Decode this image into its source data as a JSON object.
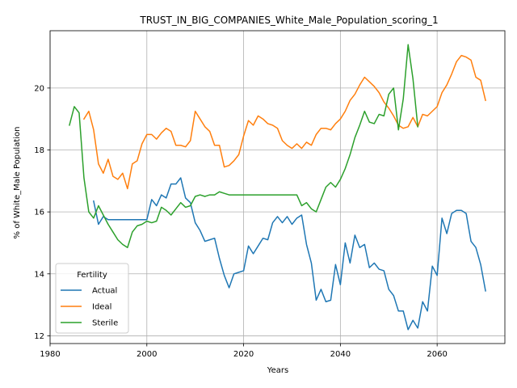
{
  "chart_data": {
    "type": "line",
    "title": "TRUST_IN_BIG_COMPANIES_White_Male_Population_scoring_1",
    "xlabel": "Years",
    "ylabel": "% of White_Male Population",
    "xlim": [
      1980,
      2074
    ],
    "ylim": [
      11.75,
      21.85
    ],
    "xticks": [
      1980,
      2000,
      2020,
      2040,
      2060
    ],
    "yticks": [
      12,
      14,
      16,
      18,
      20
    ],
    "grid": true,
    "legend": {
      "title": "Fertility",
      "placement": "lower-left"
    },
    "series": [
      {
        "name": "Actual",
        "color": "#1f77b4",
        "x": [
          1989,
          1990,
          1991,
          1992,
          1993,
          1994,
          1995,
          1996,
          1997,
          1998,
          1999,
          2000,
          2001,
          2002,
          2003,
          2004,
          2005,
          2006,
          2007,
          2008,
          2009,
          2010,
          2011,
          2012,
          2013,
          2014,
          2015,
          2016,
          2017,
          2018,
          2019,
          2020,
          2021,
          2022,
          2023,
          2024,
          2025,
          2026,
          2027,
          2028,
          2029,
          2030,
          2031,
          2032,
          2033,
          2034,
          2035,
          2036,
          2037,
          2038,
          2039,
          2040,
          2041,
          2042,
          2043,
          2044,
          2045,
          2046,
          2047,
          2048,
          2049,
          2050,
          2051,
          2052,
          2053,
          2054,
          2055,
          2056,
          2057,
          2058,
          2059,
          2060,
          2061,
          2062,
          2063,
          2064,
          2065,
          2066,
          2067,
          2068,
          2069,
          2070
        ],
        "y": [
          16.35,
          15.6,
          15.85,
          15.75,
          15.75,
          15.75,
          15.75,
          15.75,
          15.75,
          15.75,
          15.75,
          15.75,
          16.4,
          16.2,
          16.55,
          16.45,
          16.9,
          16.9,
          17.1,
          16.45,
          16.3,
          15.65,
          15.4,
          15.05,
          15.1,
          15.15,
          14.5,
          13.95,
          13.55,
          14.0,
          14.05,
          14.1,
          14.9,
          14.65,
          14.9,
          15.15,
          15.1,
          15.65,
          15.85,
          15.65,
          15.85,
          15.6,
          15.8,
          15.9,
          14.95,
          14.35,
          13.15,
          13.5,
          13.1,
          13.15,
          14.3,
          13.65,
          15.0,
          14.35,
          15.25,
          14.85,
          14.95,
          14.2,
          14.35,
          14.15,
          14.1,
          13.5,
          13.3,
          12.8,
          12.8,
          12.2,
          12.5,
          12.25,
          13.1,
          12.8,
          14.25,
          13.95,
          15.8,
          15.3,
          15.95,
          16.05,
          16.05,
          15.95,
          15.05,
          14.85,
          14.3,
          13.45
        ]
      },
      {
        "name": "Ideal",
        "color": "#ff7f0e",
        "x": [
          1987,
          1988,
          1989,
          1990,
          1991,
          1992,
          1993,
          1994,
          1995,
          1996,
          1997,
          1998,
          1999,
          2000,
          2001,
          2002,
          2003,
          2004,
          2005,
          2006,
          2007,
          2008,
          2009,
          2010,
          2011,
          2012,
          2013,
          2014,
          2015,
          2016,
          2017,
          2018,
          2019,
          2020,
          2021,
          2022,
          2023,
          2024,
          2025,
          2026,
          2027,
          2028,
          2029,
          2030,
          2031,
          2032,
          2033,
          2034,
          2035,
          2036,
          2037,
          2038,
          2039,
          2040,
          2041,
          2042,
          2043,
          2044,
          2045,
          2046,
          2047,
          2048,
          2049,
          2050,
          2051,
          2052,
          2053,
          2054,
          2055,
          2056,
          2057,
          2058,
          2059,
          2060,
          2061,
          2062,
          2063,
          2064,
          2065,
          2066,
          2067,
          2068,
          2069,
          2070
        ],
        "y": [
          19.0,
          19.25,
          18.65,
          17.55,
          17.25,
          17.7,
          17.15,
          17.05,
          17.25,
          16.75,
          17.55,
          17.65,
          18.2,
          18.5,
          18.5,
          18.35,
          18.55,
          18.7,
          18.6,
          18.15,
          18.15,
          18.1,
          18.3,
          19.25,
          19.0,
          18.75,
          18.6,
          18.15,
          18.15,
          17.45,
          17.5,
          17.65,
          17.85,
          18.45,
          18.95,
          18.8,
          19.1,
          19.0,
          18.85,
          18.8,
          18.7,
          18.3,
          18.15,
          18.05,
          18.2,
          18.05,
          18.25,
          18.15,
          18.5,
          18.7,
          18.7,
          18.65,
          18.85,
          19.0,
          19.25,
          19.6,
          19.8,
          20.1,
          20.35,
          20.2,
          20.05,
          19.85,
          19.55,
          19.35,
          19.1,
          18.8,
          18.7,
          18.75,
          19.05,
          18.75,
          19.15,
          19.1,
          19.25,
          19.4,
          19.85,
          20.1,
          20.45,
          20.85,
          21.05,
          21.0,
          20.9,
          20.35,
          20.25,
          19.6
        ]
      },
      {
        "name": "Sterile",
        "color": "#2ca02c",
        "x": [
          1984,
          1985,
          1986,
          1987,
          1988,
          1989,
          1990,
          1991,
          1992,
          1993,
          1994,
          1995,
          1996,
          1997,
          1998,
          1999,
          2000,
          2001,
          2002,
          2003,
          2004,
          2005,
          2006,
          2007,
          2008,
          2009,
          2010,
          2011,
          2012,
          2013,
          2014,
          2015,
          2016,
          2017,
          2018,
          2019,
          2020,
          2021,
          2022,
          2023,
          2024,
          2025,
          2026,
          2027,
          2028,
          2029,
          2030,
          2031,
          2032,
          2033,
          2034,
          2035,
          2036,
          2037,
          2038,
          2039,
          2040,
          2041,
          2042,
          2043,
          2044,
          2045,
          2046,
          2047,
          2048,
          2049,
          2050,
          2051,
          2052,
          2053,
          2054,
          2055,
          2056
        ],
        "y": [
          18.8,
          19.4,
          19.2,
          17.1,
          16.0,
          15.8,
          16.2,
          15.9,
          15.6,
          15.35,
          15.1,
          14.95,
          14.85,
          15.35,
          15.55,
          15.6,
          15.7,
          15.65,
          15.7,
          16.15,
          16.05,
          15.9,
          16.1,
          16.3,
          16.15,
          16.2,
          16.5,
          16.55,
          16.5,
          16.55,
          16.55,
          16.65,
          16.6,
          16.55,
          16.55,
          16.55,
          16.55,
          16.55,
          16.55,
          16.55,
          16.55,
          16.55,
          16.55,
          16.55,
          16.55,
          16.55,
          16.55,
          16.55,
          16.2,
          16.3,
          16.1,
          16.0,
          16.4,
          16.8,
          16.95,
          16.8,
          17.05,
          17.4,
          17.85,
          18.4,
          18.8,
          19.25,
          18.9,
          18.85,
          19.15,
          19.1,
          19.8,
          20.0,
          18.65,
          19.65,
          21.4,
          20.3,
          18.75
        ]
      }
    ]
  }
}
